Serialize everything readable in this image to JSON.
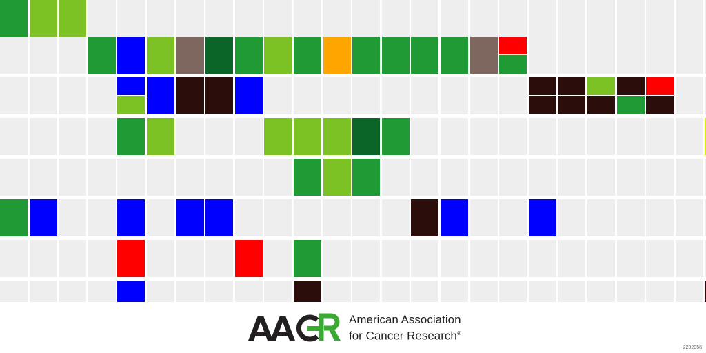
{
  "colors": {
    "empty": "#eeeeee",
    "G": "#1f9a35",
    "L": "#7dc225",
    "B": "#0000ff",
    "T": "#7d675f",
    "D": "#0b6428",
    "O": "#ffa500",
    "R": "#ff0000",
    "K": "#2b0e0b",
    "Y": "#d6ed22"
  },
  "grid": {
    "rows": [
      [
        "G",
        "L",
        "L",
        "",
        "",
        "",
        "",
        "",
        "",
        "",
        "",
        "",
        "",
        "",
        "",
        "",
        "",
        "",
        "",
        "",
        "",
        "",
        "",
        "",
        ""
      ],
      [
        "",
        "",
        "",
        "G",
        "B",
        "L",
        "T",
        "D",
        "G",
        "L",
        "G",
        "O",
        "G",
        "G",
        "G",
        "G",
        "T",
        [
          "R",
          "G"
        ],
        "",
        "",
        "",
        "",
        "",
        "",
        ""
      ],
      [
        "",
        "",
        "",
        "",
        [
          "B",
          "L"
        ],
        "B",
        "K",
        "K",
        "B",
        "",
        "",
        "",
        "",
        "",
        "",
        "",
        "",
        "",
        [
          "K",
          "K"
        ],
        [
          "K",
          "K"
        ],
        [
          "L",
          "K"
        ],
        [
          "K",
          "G"
        ],
        [
          "R",
          "K"
        ],
        "",
        ""
      ],
      [
        "",
        "",
        "",
        "",
        "G",
        "L",
        "",
        "",
        "",
        "L",
        "L",
        "L",
        "D",
        "G",
        "",
        "",
        "",
        "",
        "",
        "",
        "",
        "",
        "",
        "",
        "Y"
      ],
      [
        "",
        "",
        "",
        "",
        "",
        "",
        "",
        "",
        "",
        "",
        "G",
        "L",
        "G",
        "",
        "",
        "",
        "",
        "",
        "",
        "",
        "",
        "",
        "",
        "",
        ""
      ],
      [
        "G",
        "B",
        "",
        "",
        "B",
        "",
        "B",
        "B",
        "",
        "",
        "",
        "",
        "",
        "",
        "K",
        "B",
        "",
        "",
        "B",
        "",
        "",
        "",
        "",
        "",
        ""
      ],
      [
        "",
        "",
        "",
        "",
        "R",
        "",
        "",
        "",
        "R",
        "",
        "G",
        "",
        "",
        "",
        "",
        "",
        "",
        "",
        "",
        "",
        "",
        "",
        "",
        "",
        ""
      ],
      [
        "",
        "",
        "",
        "",
        "B",
        "",
        "",
        "",
        "",
        "",
        "K",
        "",
        "",
        "",
        "",
        "",
        "",
        "",
        "",
        "",
        "",
        "",
        "",
        "",
        "K"
      ]
    ]
  },
  "logo": {
    "wordmark": "AACR",
    "line1": "American Association",
    "line2": "for Cancer Research",
    "registered": "®"
  },
  "figure_id": "2202058"
}
